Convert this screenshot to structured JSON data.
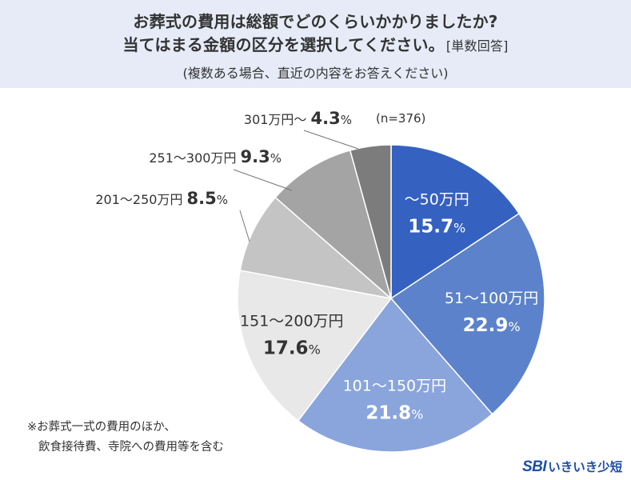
{
  "header": {
    "title_line1": "お葬式の費用は総額でどのくらいかかりましたか?",
    "title_line2": "当てはまる金額の区分を選択してください。",
    "title_tag": "[単数回答]",
    "subtitle": "(複数ある場合、直近の内容をお答えください)"
  },
  "chart_data": {
    "type": "pie",
    "n_label": "(n=376)",
    "start": "12 o'clock, clockwise",
    "categories": [
      "〜50万円",
      "51〜100万円",
      "101〜150万円",
      "151〜200万円",
      "201〜250万円",
      "251〜300万円",
      "301万円〜"
    ],
    "values": [
      15.7,
      22.9,
      21.8,
      17.6,
      8.5,
      9.3,
      4.3
    ],
    "value_labels": [
      "15.7",
      "22.9",
      "21.8",
      "17.6",
      "8.5",
      "9.3",
      "4.3"
    ],
    "unit": "%",
    "colors": [
      "#3561c1",
      "#5c82cb",
      "#8aa5dc",
      "#e8e8e8",
      "#c4c4c4",
      "#a4a4a4",
      "#7c7c7c"
    ],
    "label_colors": [
      "#ffffff",
      "#ffffff",
      "#ffffff",
      "#333333",
      "#333333",
      "#333333",
      "#333333"
    ]
  },
  "footnote": {
    "line1": "※お葬式一式の費用のほか、",
    "line2": "飲食接待費、寺院への費用等を含む"
  },
  "logo": {
    "sbi": "SBI",
    "text": "いきいき少短",
    "brand_color": "#1e4ea8"
  }
}
